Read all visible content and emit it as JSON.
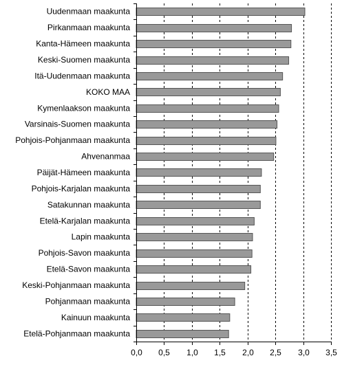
{
  "chart_data": {
    "type": "bar",
    "orientation": "horizontal",
    "title": "",
    "xlabel": "",
    "ylabel": "",
    "categories": [
      "Uudenmaan maakunta",
      "Pirkanmaan maakunta",
      "Kanta-Hämeen maakunta",
      "Keski-Suomen maakunta",
      "Itä-Uudenmaan maakunta",
      "KOKO MAA",
      "Kymenlaakson maakunta",
      "Varsinais-Suomen maakunta",
      "Pohjois-Pohjanmaan maakunta",
      "Ahvenanmaa",
      "Päijät-Hämeen maakunta",
      "Pohjois-Karjalan maakunta",
      "Satakunnan maakunta",
      "Etelä-Karjalan maakunta",
      "Lapin maakunta",
      "Pohjois-Savon maakunta",
      "Etelä-Savon maakunta",
      "Keski-Pohjanmaan maakunta",
      "Pohjanmaan maakunta",
      "Kainuun maakunta",
      "Etelä-Pohjanmaan maakunta"
    ],
    "values": [
      3.03,
      2.79,
      2.78,
      2.74,
      2.63,
      2.59,
      2.56,
      2.53,
      2.51,
      2.47,
      2.25,
      2.23,
      2.23,
      2.12,
      2.09,
      2.08,
      2.06,
      1.95,
      1.77,
      1.68,
      1.66
    ],
    "xlim": [
      0,
      3.5
    ],
    "xticks": [
      0,
      0.5,
      1,
      1.5,
      2,
      2.5,
      3,
      3.5
    ],
    "xtick_labels": [
      "0,0",
      "0,5",
      "1,0",
      "1,5",
      "2,0",
      "2,5",
      "3,0",
      "3,5"
    ],
    "grid": "vertical dashed",
    "legend": "none",
    "bar_color": "#999999",
    "bar_edge_color": "#555555"
  }
}
